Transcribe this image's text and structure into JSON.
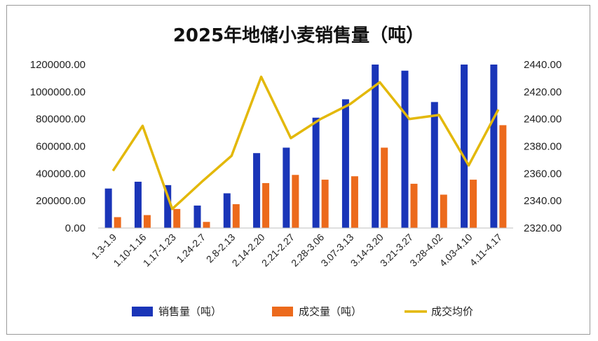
{
  "chart_data": {
    "type": "bar",
    "title": "2025年地储小麦销售量（吨）",
    "categories": [
      "1.3-1.9",
      "1.10-1.16",
      "1.17-1.23",
      "1.24-2.7",
      "2.8-2.13",
      "2.14-2.20",
      "2.21-2.27",
      "2.28-3.06",
      "3.07-3.13",
      "3.14-3.20",
      "3.21-3.27",
      "3.28-4.02",
      "4.03-4.10",
      "4.11-4.17"
    ],
    "series": [
      {
        "name": "销售量（吨）",
        "type": "bar",
        "axis": "left",
        "color": "#1a35b8",
        "values": [
          290000,
          340000,
          315000,
          165000,
          255000,
          550000,
          590000,
          810000,
          945000,
          1210000,
          1155000,
          925000,
          1210000,
          1210000
        ]
      },
      {
        "name": "成交量（吨）",
        "type": "bar",
        "axis": "left",
        "color": "#ec6a1c",
        "values": [
          80000,
          95000,
          140000,
          45000,
          175000,
          330000,
          390000,
          355000,
          380000,
          590000,
          325000,
          245000,
          355000,
          755000
        ]
      },
      {
        "name": "成交均价",
        "type": "line",
        "axis": "right",
        "color": "#e3b80a",
        "values": [
          2362,
          2395,
          2334,
          2354,
          2373,
          2431,
          2386,
          2400,
          2411,
          2427,
          2400,
          2403,
          2366,
          2407
        ]
      }
    ],
    "yleft": {
      "min": 0,
      "max": 1200000,
      "ticks": [
        "0.00",
        "200000.00",
        "400000.00",
        "600000.00",
        "800000.00",
        "1000000.00",
        "1200000.00"
      ]
    },
    "yright": {
      "min": 2320,
      "max": 2440,
      "ticks": [
        "2320.00",
        "2340.00",
        "2360.00",
        "2380.00",
        "2400.00",
        "2420.00",
        "2440.00"
      ]
    },
    "legend_position": "bottom",
    "grid": false
  }
}
